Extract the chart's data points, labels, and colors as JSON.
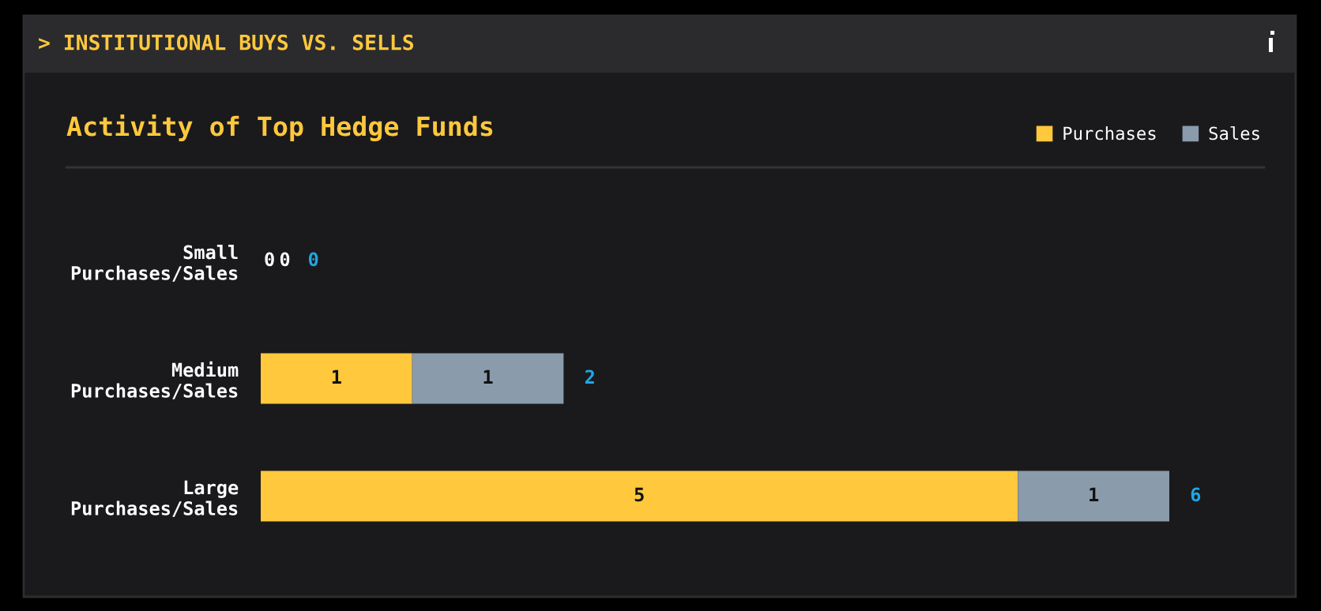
{
  "chart_data": {
    "type": "bar",
    "orientation": "horizontal",
    "stacked": true,
    "data_labels": true,
    "title": "> INSTITUTIONAL BUYS VS. SELLS",
    "subtitle": "Activity of Top Hedge Funds",
    "categories": [
      "Small\nPurchases/Sales",
      "Medium\nPurchases/Sales",
      "Large\nPurchases/Sales"
    ],
    "series": [
      {
        "name": "Purchases",
        "color": "#ffc83d",
        "values": [
          0,
          1,
          5
        ]
      },
      {
        "name": "Sales",
        "color": "#8a9bab",
        "values": [
          0,
          1,
          1
        ]
      }
    ],
    "totals": [
      "0",
      "2",
      "6"
    ],
    "tick_labels": "y",
    "legend": "top right",
    "grid": false
  }
}
